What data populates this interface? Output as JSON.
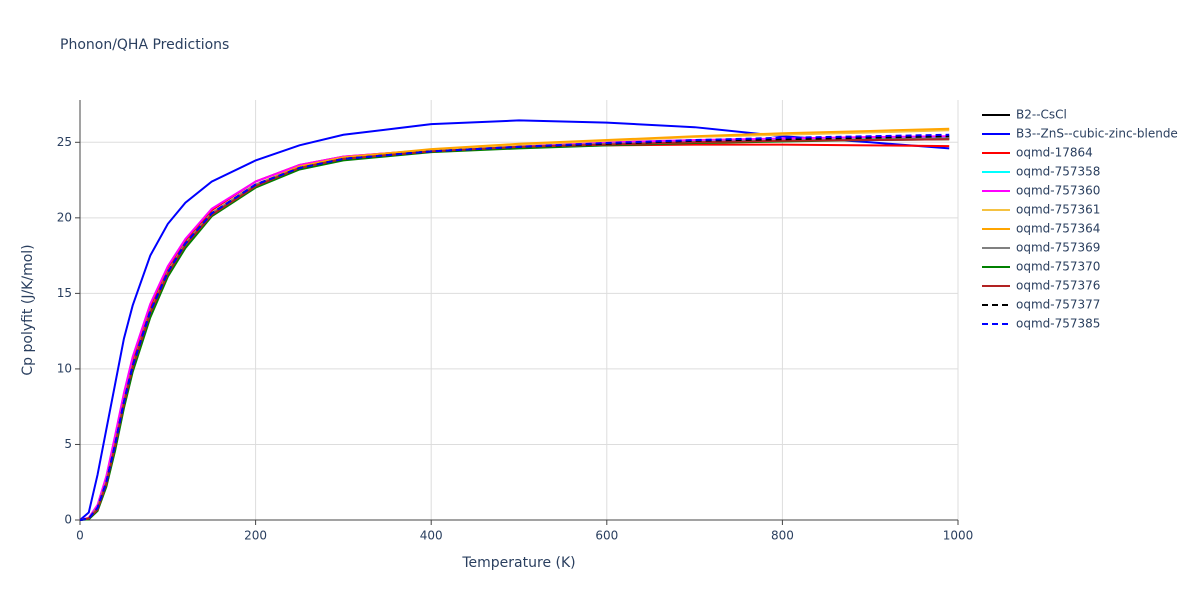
{
  "chart_data": {
    "type": "line",
    "title": "Phonon/QHA Predictions",
    "x_label": "Temperature (K)",
    "y_label": "Cp polyfit (J/K/mol)",
    "x": [
      0,
      10,
      20,
      30,
      40,
      50,
      60,
      80,
      100,
      120,
      150,
      200,
      250,
      300,
      400,
      500,
      600,
      700,
      800,
      900,
      990
    ],
    "xlim": [
      0,
      1000
    ],
    "ylim": [
      0,
      27.8
    ],
    "xticks": [
      0,
      200,
      400,
      600,
      800,
      1000
    ],
    "yticks": [
      0,
      5,
      10,
      15,
      20,
      25
    ],
    "grid": true,
    "legend": "right",
    "series": [
      {
        "name": "B2--CsCl",
        "color": "#000000",
        "values": [
          0,
          0.1,
          0.8,
          2.5,
          5,
          7.8,
          10.2,
          13.8,
          16.4,
          18.3,
          20.3,
          22.2,
          23.3,
          23.9,
          24.4,
          24.7,
          24.9,
          25.05,
          25.15,
          25.25,
          25.3
        ]
      },
      {
        "name": "B3--ZnS--cubic-zinc-blende",
        "color": "#0000ff",
        "values": [
          0,
          0.5,
          3,
          6,
          9,
          12,
          14.2,
          17.5,
          19.6,
          21,
          22.4,
          23.8,
          24.8,
          25.5,
          26.2,
          26.45,
          26.3,
          26,
          25.4,
          25,
          24.6
        ]
      },
      {
        "name": "oqmd-17864",
        "color": "#ff0000",
        "values": [
          0,
          0.1,
          0.9,
          2.7,
          5.3,
          8.1,
          10.5,
          14.1,
          16.7,
          18.5,
          20.5,
          22.4,
          23.5,
          24.05,
          24.5,
          24.7,
          24.8,
          24.85,
          24.85,
          24.8,
          24.75
        ]
      },
      {
        "name": "oqmd-757358",
        "color": "#00ffff",
        "values": [
          0,
          0.1,
          0.8,
          2.5,
          5,
          7.8,
          10.2,
          13.8,
          16.4,
          18.3,
          20.3,
          22.2,
          23.3,
          23.9,
          24.45,
          24.75,
          24.95,
          25.1,
          25.2,
          25.3,
          25.35
        ]
      },
      {
        "name": "oqmd-757360",
        "color": "#ff00ff",
        "values": [
          0,
          0.15,
          1.0,
          2.9,
          5.6,
          8.4,
          10.8,
          14.3,
          16.8,
          18.6,
          20.6,
          22.4,
          23.5,
          24.05,
          24.5,
          24.8,
          25.0,
          25.15,
          25.25,
          25.35,
          25.4
        ]
      },
      {
        "name": "oqmd-757361",
        "color": "#f5c242",
        "values": [
          0,
          0.1,
          0.8,
          2.5,
          5,
          7.8,
          10.2,
          13.8,
          16.4,
          18.3,
          20.3,
          22.2,
          23.3,
          23.9,
          24.5,
          24.85,
          25.1,
          25.35,
          25.5,
          25.65,
          25.8
        ]
      },
      {
        "name": "oqmd-757364",
        "color": "#ffa500",
        "values": [
          0,
          0.1,
          0.8,
          2.5,
          5,
          7.8,
          10.2,
          13.8,
          16.4,
          18.3,
          20.3,
          22.2,
          23.4,
          24.0,
          24.55,
          24.9,
          25.15,
          25.4,
          25.6,
          25.75,
          25.9
        ]
      },
      {
        "name": "oqmd-757369",
        "color": "#808080",
        "values": [
          0,
          0.1,
          0.8,
          2.5,
          5,
          7.8,
          10.2,
          13.8,
          16.4,
          18.3,
          20.3,
          22.2,
          23.3,
          23.9,
          24.4,
          24.7,
          24.9,
          25.0,
          25.1,
          25.2,
          25.25
        ]
      },
      {
        "name": "oqmd-757370",
        "color": "#008000",
        "values": [
          0,
          0.05,
          0.6,
          2.2,
          4.6,
          7.4,
          9.8,
          13.4,
          16.1,
          18.0,
          20.1,
          22.0,
          23.2,
          23.8,
          24.35,
          24.6,
          24.8,
          24.95,
          25.05,
          25.15,
          25.2
        ]
      },
      {
        "name": "oqmd-757376",
        "color": "#b22222",
        "values": [
          0,
          0.1,
          0.7,
          2.4,
          4.9,
          7.7,
          10.1,
          13.7,
          16.3,
          18.2,
          20.2,
          22.1,
          23.3,
          23.9,
          24.4,
          24.7,
          24.85,
          25.0,
          25.1,
          25.15,
          25.2
        ]
      },
      {
        "name": "oqmd-757377",
        "color": "#000000",
        "dash": true,
        "values": [
          0,
          0.1,
          0.8,
          2.5,
          5,
          7.8,
          10.2,
          13.8,
          16.4,
          18.3,
          20.3,
          22.2,
          23.3,
          23.9,
          24.4,
          24.7,
          24.9,
          25.1,
          25.2,
          25.3,
          25.4
        ]
      },
      {
        "name": "oqmd-757385",
        "color": "#0000ff",
        "dash": true,
        "values": [
          0,
          0.1,
          0.8,
          2.5,
          5,
          7.8,
          10.2,
          13.8,
          16.4,
          18.3,
          20.3,
          22.2,
          23.3,
          23.9,
          24.4,
          24.7,
          24.95,
          25.15,
          25.3,
          25.4,
          25.5
        ]
      }
    ]
  }
}
